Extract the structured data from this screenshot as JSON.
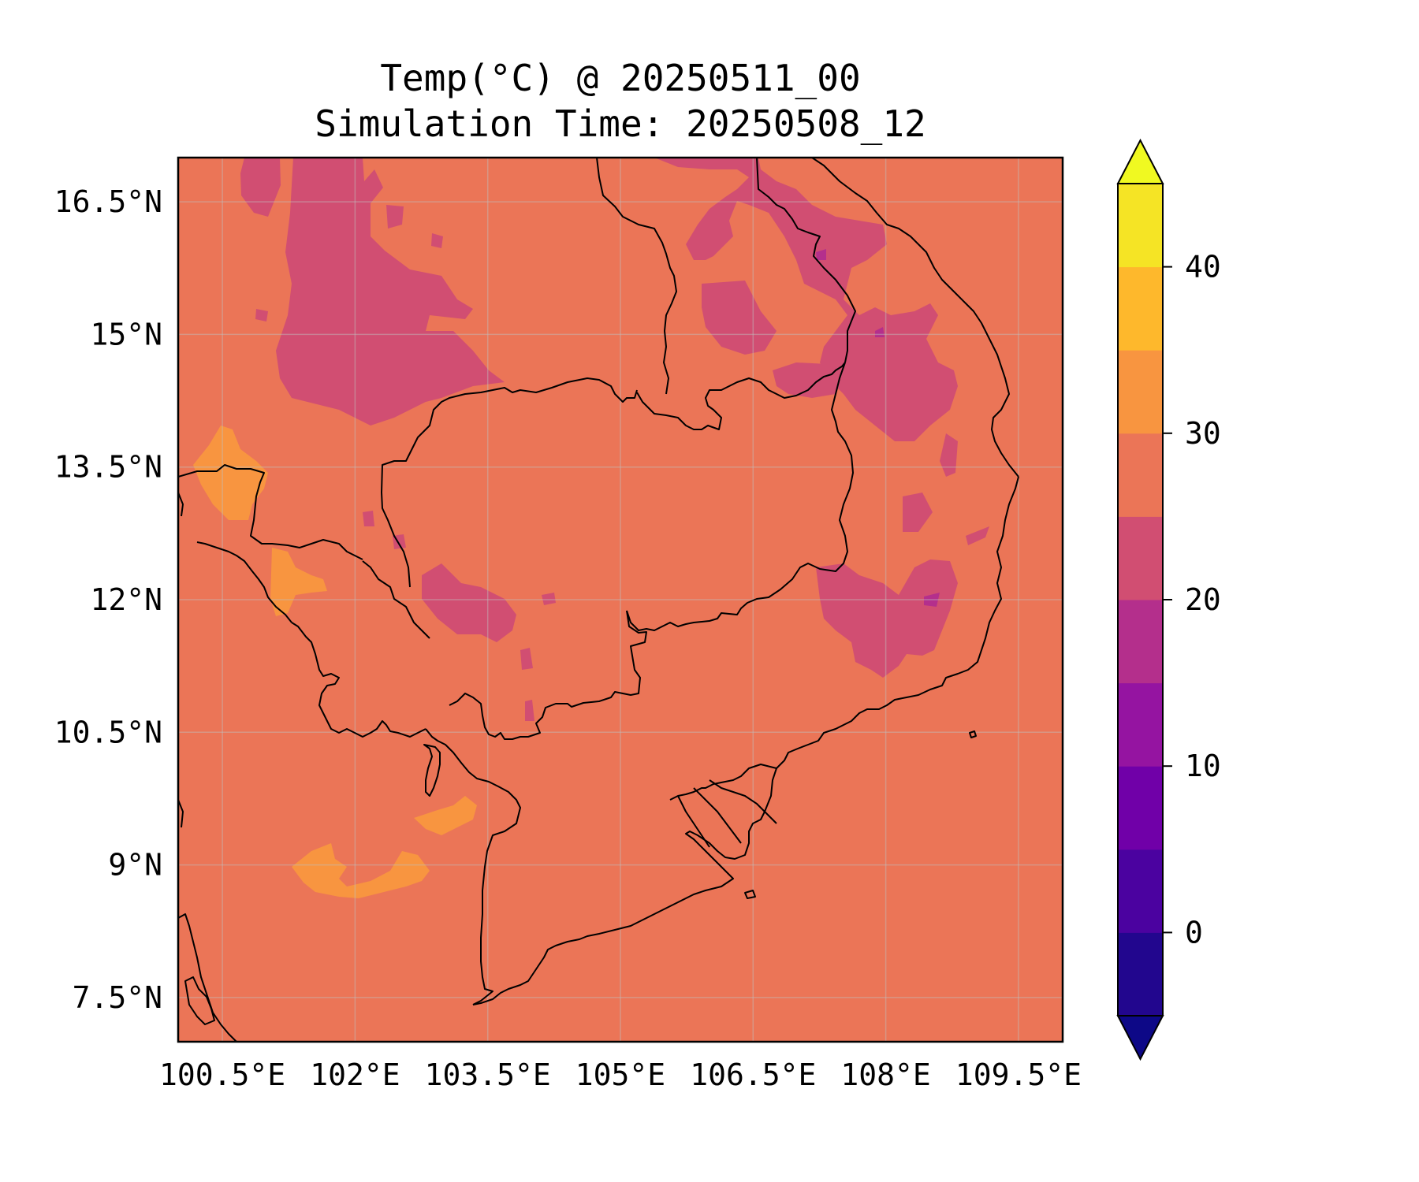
{
  "title": {
    "line1": "Temp(°C) @ 20250511_00",
    "line2": "Simulation Time: 20250508_12"
  },
  "map": {
    "lon_range": [
      100.0,
      110.0
    ],
    "lat_range": [
      7.0,
      17.0
    ],
    "lon_ticks": [
      100.5,
      102.0,
      103.5,
      105.0,
      106.5,
      108.0,
      109.5
    ],
    "lon_tick_labels": [
      "100.5°E",
      "102°E",
      "103.5°E",
      "105°E",
      "106.5°E",
      "108°E",
      "109.5°E"
    ],
    "lat_ticks": [
      7.5,
      9.0,
      10.5,
      12.0,
      13.5,
      15.0,
      16.5
    ],
    "lat_tick_labels": [
      "7.5°N",
      "9°N",
      "10.5°N",
      "12°N",
      "13.5°N",
      "15°N",
      "16.5°N"
    ],
    "gridlines": true,
    "background_level_color": "#eb7557"
  },
  "colorbar": {
    "levels": [
      -5,
      0,
      5,
      10,
      15,
      20,
      25,
      30,
      35,
      40,
      45
    ],
    "colors": [
      "#22068e",
      "#4b02a0",
      "#7000a8",
      "#9514a1",
      "#b42f8c",
      "#d14e72",
      "#eb7557",
      "#f89540",
      "#feb82c",
      "#f5e425"
    ],
    "extend_low_color": "#0d0887",
    "extend_high_color": "#f0f921",
    "tick_values": [
      0,
      10,
      20,
      30,
      40
    ],
    "tick_labels": [
      "0",
      "10",
      "20",
      "30",
      "40"
    ],
    "extend": "both"
  }
}
